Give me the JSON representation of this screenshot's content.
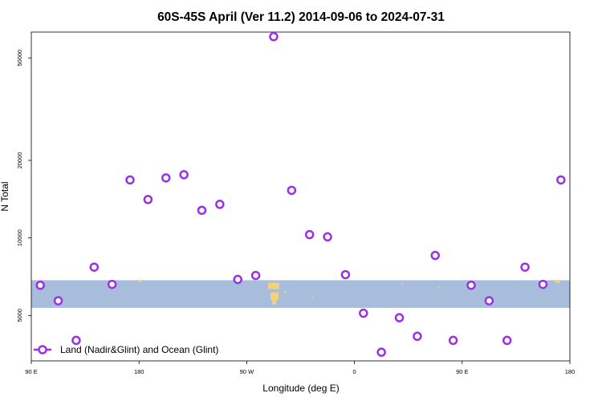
{
  "chart_data": {
    "type": "scatter",
    "title": "60S-45S April (Ver 11.2)   2014-09-06 to 2024-07-31",
    "xlabel": "Longitude (deg E)",
    "ylabel": "N Total",
    "x_range_deg": [
      90,
      450
    ],
    "y_scale": "log",
    "y_range": [
      3330,
      63000
    ],
    "x_ticks": [
      {
        "value": 90,
        "label": "90 E"
      },
      {
        "value": 180,
        "label": "180"
      },
      {
        "value": 270,
        "label": "90 W"
      },
      {
        "value": 360,
        "label": "0"
      },
      {
        "value": 450,
        "label": "90 E"
      },
      {
        "value": 540,
        "label": "180"
      }
    ],
    "y_ticks": [
      {
        "value": 5000,
        "label": "5000"
      },
      {
        "value": 10000,
        "label": "10000"
      },
      {
        "value": 20000,
        "label": "20000"
      },
      {
        "value": 50000,
        "label": "50000"
      }
    ],
    "background_band": {
      "color": "#a8bcdb",
      "y_range": [
        5350,
        6850
      ]
    },
    "land_color": "#f5d27a",
    "marker_color": "#9b30e8",
    "series": [
      {
        "name": "Land (Nadir&Glint) and Ocean (Glint)",
        "points": [
          {
            "x": 97.5,
            "y": 6550
          },
          {
            "x": 112.5,
            "y": 5700
          },
          {
            "x": 127.5,
            "y": 4000
          },
          {
            "x": 142.5,
            "y": 7700
          },
          {
            "x": 157.5,
            "y": 6600
          },
          {
            "x": 172.5,
            "y": 16800
          },
          {
            "x": 187.5,
            "y": 14100
          },
          {
            "x": 202.5,
            "y": 17100
          },
          {
            "x": 217.5,
            "y": 17600
          },
          {
            "x": 232.5,
            "y": 12800
          },
          {
            "x": 247.5,
            "y": 13500
          },
          {
            "x": 262.5,
            "y": 6900
          },
          {
            "x": 277.5,
            "y": 7150
          },
          {
            "x": 292.5,
            "y": 60500
          },
          {
            "x": 307.5,
            "y": 15300
          },
          {
            "x": 322.5,
            "y": 10300
          },
          {
            "x": 337.5,
            "y": 10100
          },
          {
            "x": 352.5,
            "y": 7200
          },
          {
            "x": 367.5,
            "y": 5100
          },
          {
            "x": 382.5,
            "y": 3600
          },
          {
            "x": 397.5,
            "y": 4900
          },
          {
            "x": 412.5,
            "y": 4150
          },
          {
            "x": 427.5,
            "y": 8550
          },
          {
            "x": 442.5,
            "y": 4000
          },
          {
            "x": 457.5,
            "y": 6550
          },
          {
            "x": 472.5,
            "y": 5700
          },
          {
            "x": 487.5,
            "y": 4000
          },
          {
            "x": 502.5,
            "y": 7700
          },
          {
            "x": 517.5,
            "y": 6600
          },
          {
            "x": 532.5,
            "y": 16800
          }
        ]
      }
    ],
    "legend_position": "bottom-left",
    "grid": false
  }
}
